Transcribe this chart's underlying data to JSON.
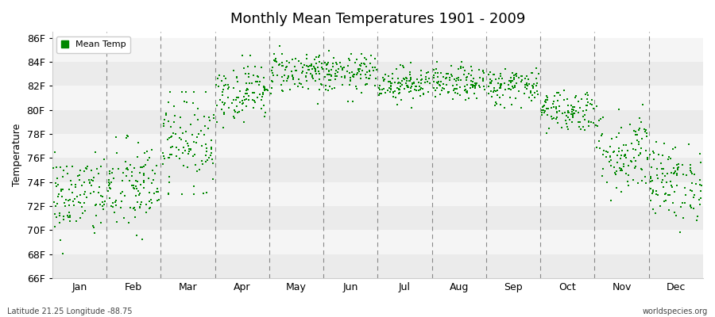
{
  "title": "Monthly Mean Temperatures 1901 - 2009",
  "ylabel": "Temperature",
  "bottom_left_text": "Latitude 21.25 Longitude -88.75",
  "bottom_right_text": "worldspecies.org",
  "legend_label": "Mean Temp",
  "dot_color": "#008800",
  "background_color": "#ffffff",
  "band_color_even": "#f5f5f5",
  "band_color_odd": "#ebebeb",
  "ylim": [
    66,
    86.5
  ],
  "yticks": [
    66,
    68,
    70,
    72,
    74,
    76,
    78,
    80,
    82,
    84,
    86
  ],
  "ytick_labels": [
    "66F",
    "68F",
    "70F",
    "72F",
    "74F",
    "76F",
    "78F",
    "80F",
    "82F",
    "84F",
    "86F"
  ],
  "months": [
    "Jan",
    "Feb",
    "Mar",
    "Apr",
    "May",
    "Jun",
    "Jul",
    "Aug",
    "Sep",
    "Oct",
    "Nov",
    "Dec"
  ],
  "month_means": [
    72.8,
    73.5,
    77.5,
    81.5,
    83.2,
    83.0,
    82.2,
    82.2,
    82.0,
    80.0,
    76.5,
    74.0
  ],
  "month_stds": [
    1.8,
    2.0,
    2.0,
    1.2,
    0.9,
    0.8,
    0.7,
    0.7,
    0.8,
    0.9,
    1.8,
    1.6
  ],
  "month_mins": [
    67.5,
    66.5,
    73.0,
    78.5,
    80.5,
    80.5,
    80.0,
    80.0,
    79.5,
    77.5,
    72.5,
    69.5
  ],
  "month_maxs": [
    76.5,
    78.5,
    81.5,
    84.5,
    85.5,
    85.5,
    84.5,
    84.5,
    83.5,
    82.5,
    82.5,
    77.5
  ],
  "n_years": 109,
  "seed": 42,
  "dot_size": 4,
  "figsize": [
    9.0,
    4.0
  ],
  "dpi": 100
}
